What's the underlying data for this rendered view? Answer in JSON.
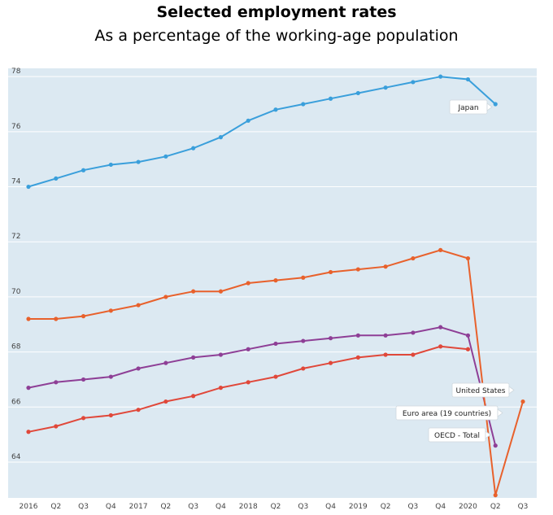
{
  "chart_data": {
    "type": "line",
    "title": "Selected employment rates",
    "subtitle": "As a percentage of the working-age population",
    "xlabel": "",
    "ylabel": "",
    "ylim": [
      62.7,
      78.3
    ],
    "yticks": [
      64,
      66,
      68,
      70,
      72,
      74,
      76,
      78
    ],
    "grid": true,
    "categories": [
      "2016",
      "Q2",
      "Q3",
      "Q4",
      "2017",
      "Q2",
      "Q3",
      "Q4",
      "2018",
      "Q2",
      "Q3",
      "Q4",
      "2019",
      "Q2",
      "Q3",
      "Q4",
      "2020",
      "Q2",
      "Q3"
    ],
    "series": [
      {
        "name": "Japan",
        "color": "#3a9fdb",
        "values": [
          74.0,
          74.3,
          74.6,
          74.8,
          74.9,
          75.1,
          75.4,
          75.8,
          76.4,
          76.8,
          77.0,
          77.2,
          77.4,
          77.6,
          77.8,
          78.0,
          77.9,
          77.0,
          null
        ]
      },
      {
        "name": "United States",
        "color": "#e8612c",
        "values": [
          69.2,
          69.2,
          69.3,
          69.5,
          69.7,
          70.0,
          70.2,
          70.2,
          70.5,
          70.6,
          70.7,
          70.9,
          71.0,
          71.1,
          71.4,
          71.7,
          71.4,
          62.8,
          66.2
        ]
      },
      {
        "name": "Euro area (19 countries)",
        "color": "#e0483a",
        "values": [
          65.1,
          65.3,
          65.6,
          65.7,
          65.9,
          66.2,
          66.4,
          66.7,
          66.9,
          67.1,
          67.4,
          67.6,
          67.8,
          67.9,
          67.9,
          68.2,
          68.1,
          null,
          null
        ]
      },
      {
        "name": "OECD - Total",
        "color": "#8e3f96",
        "values": [
          66.7,
          66.9,
          67.0,
          67.1,
          67.4,
          67.6,
          67.8,
          67.9,
          68.1,
          68.3,
          68.4,
          68.5,
          68.6,
          68.6,
          68.7,
          68.9,
          68.6,
          64.6,
          null
        ]
      }
    ]
  }
}
